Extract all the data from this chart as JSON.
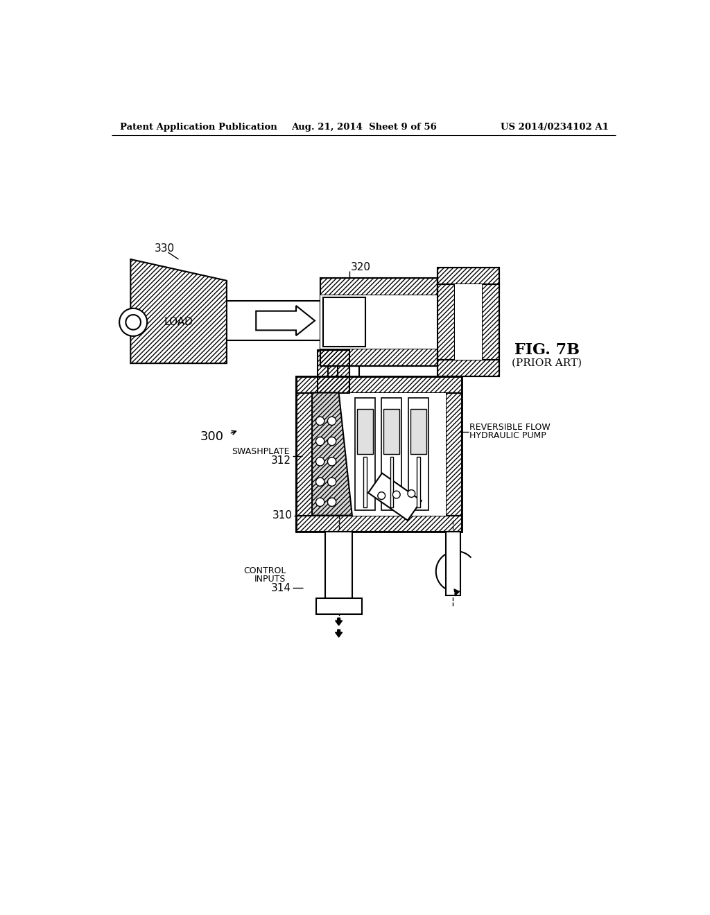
{
  "bg_color": "#ffffff",
  "lc": "#000000",
  "header_left": "Patent Application Publication",
  "header_center": "Aug. 21, 2014  Sheet 9 of 56",
  "header_right": "US 2014/0234102 A1",
  "fig_label": "FIG. 7B",
  "fig_sublabel": "(PRIOR ART)",
  "label_300": "300",
  "label_310": "310",
  "label_312": "312",
  "label_314": "314",
  "label_320": "320",
  "label_330": "330",
  "label_load": "LOAD",
  "label_swashplate": "SWASHPLATE",
  "label_control_inputs_1": "CONTROL",
  "label_control_inputs_2": "INPUTS",
  "label_rev_1": "REVERSIBLE FLOW",
  "label_rev_2": "HYDRAULIC PUMP"
}
